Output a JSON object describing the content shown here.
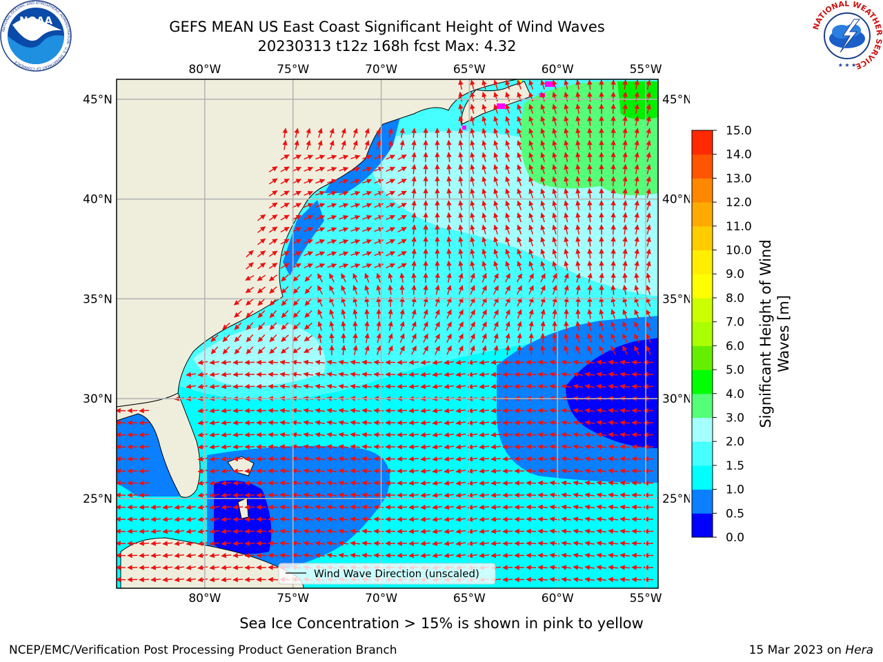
{
  "title": {
    "line1": "GEFS MEAN US East Coast Significant Height of Wind Waves",
    "line2": "20230313 t12z 168h fcst   Max: 4.32"
  },
  "logos": {
    "noaa_text": "NOAA",
    "noaa_ring": "NATIONAL OCEANIC AND ATMOSPHERIC ADMINISTRATION · U.S. DEPARTMENT OF COMMERCE",
    "nws_ring": "NATIONAL WEATHER SERVICE"
  },
  "map": {
    "lon_labels": [
      "80°W",
      "75°W",
      "70°W",
      "65°W",
      "60°W",
      "55°W"
    ],
    "lon_values": [
      -80,
      -75,
      -70,
      -65,
      -60,
      -55
    ],
    "lat_labels": [
      "45°N",
      "40°N",
      "35°N",
      "30°N",
      "25°N"
    ],
    "lat_values": [
      45,
      40,
      35,
      30,
      25
    ],
    "extent": {
      "lon_min": -85,
      "lon_max": -54.3,
      "lat_min": 20.5,
      "lat_max": 46
    },
    "legend_label": "Wind Wave Direction (unscaled)",
    "colors": {
      "land": "#efeedc",
      "arrow": "#ee1111",
      "grid": "#b4b4b4",
      "ice": "#ff00ff"
    }
  },
  "colorbar": {
    "label_line1": "Significant Height of Wind",
    "label_line2": "Waves [m]",
    "ticks": [
      "0.0",
      "0.5",
      "1.0",
      "1.5",
      "2.0",
      "3.0",
      "4.0",
      "5.0",
      "6.0",
      "7.0",
      "8.0",
      "9.0",
      "10.0",
      "11.0",
      "12.0",
      "13.0",
      "14.0",
      "15.0"
    ],
    "colors": [
      "#0000ff",
      "#0a7fff",
      "#00ffff",
      "#46ffff",
      "#a4ffff",
      "#55ff77",
      "#00ff00",
      "#66ee00",
      "#aaff00",
      "#ccff00",
      "#ffff00",
      "#ffee00",
      "#ffcc00",
      "#ffaa00",
      "#ff8800",
      "#ff5500",
      "#ff2a00",
      "#ff0000"
    ]
  },
  "subcaption": "Sea Ice Concentration > 15% is shown in pink to yellow",
  "footer": {
    "left": "NCEP/EMC/Verification Post Processing Product Generation Branch",
    "right_date": "15 Mar 2023 on ",
    "right_host": "Hera"
  }
}
